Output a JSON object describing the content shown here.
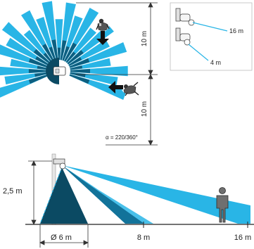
{
  "top_view": {
    "range_top": "10 m",
    "range_bottom": "10 m",
    "angle_label": "α = 220/360°",
    "colors": {
      "light": "#29b5e6",
      "dark": "#0d5f80",
      "darker": "#0b4a63",
      "line": "#2a2a2a"
    }
  },
  "inset": {
    "range_long": "16 m",
    "range_short": "4 m"
  },
  "side_view": {
    "mount_height": "2,5 m",
    "diameter": "Ø 6 m",
    "mark_8": "8 m",
    "mark_16": "16 m"
  },
  "icons": [
    "person-icon",
    "person-crawling-icon",
    "sensor-icon",
    "arrow-icon"
  ]
}
